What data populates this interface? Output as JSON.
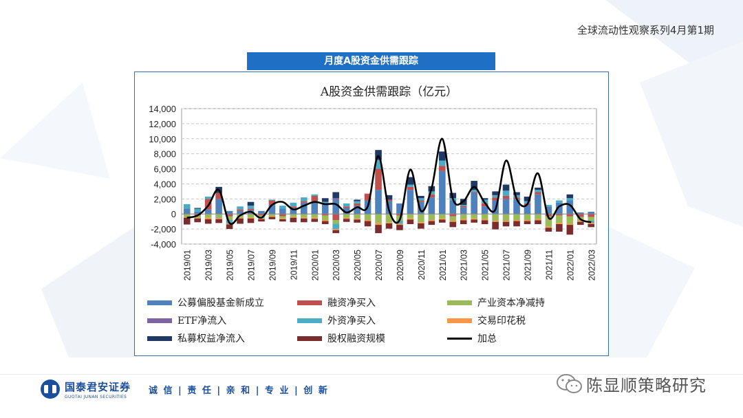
{
  "header": {
    "report_series": "全球流动性观察系列4月第1期"
  },
  "banner": {
    "title": "月度A股资金供需跟踪"
  },
  "footer": {
    "brand_name": "国泰君安证券",
    "brand_en": "GUOTAI JUNAN SECURITIES",
    "motto": "诚 信 | 责 任 | 亲 和 | 专 业 | 创 新",
    "wechat_name": "陈显顺策略研究"
  },
  "chart_data": {
    "type": "bar",
    "title": "A股资金供需跟踪（亿元）",
    "stacked": true,
    "ylim": [
      -4000,
      14000
    ],
    "yticks": [
      -4000,
      -2000,
      0,
      2000,
      4000,
      6000,
      8000,
      10000,
      12000,
      14000
    ],
    "ytick_labels": [
      "-4,000",
      "-2,000",
      "0",
      "2,000",
      "4,000",
      "6,000",
      "8,000",
      "10,000",
      "12,000",
      "14,000"
    ],
    "grid": true,
    "legend_position": "bottom",
    "categories": [
      "2019/01",
      "2019/02",
      "2019/03",
      "2019/04",
      "2019/05",
      "2019/06",
      "2019/07",
      "2019/08",
      "2019/09",
      "2019/10",
      "2019/11",
      "2019/12",
      "2020/01",
      "2020/02",
      "2020/03",
      "2020/04",
      "2020/05",
      "2020/06",
      "2020/07",
      "2020/08",
      "2020/09",
      "2020/10",
      "2020/11",
      "2020/12",
      "2021/01",
      "2021/02",
      "2021/03",
      "2021/04",
      "2021/05",
      "2021/06",
      "2021/07",
      "2021/08",
      "2021/09",
      "2021/10",
      "2021/11",
      "2021/12",
      "2022/01",
      "2022/02",
      "2022/03"
    ],
    "tick_labels": [
      "2019/01",
      "2019/03",
      "2019/05",
      "2019/07",
      "2019/09",
      "2019/11",
      "2020/01",
      "2020/03",
      "2020/05",
      "2020/07",
      "2020/09",
      "2020/11",
      "2021/01",
      "2021/03",
      "2021/05",
      "2021/07",
      "2021/09",
      "2021/11",
      "2022/01",
      "2022/03"
    ],
    "series": [
      {
        "name": "公募偏股基金新成立",
        "color": "#4f81bd",
        "values": [
          700,
          300,
          600,
          2000,
          400,
          400,
          500,
          400,
          1200,
          700,
          800,
          1500,
          1700,
          1500,
          1900,
          800,
          1100,
          1800,
          3200,
          1700,
          1400,
          3200,
          1600,
          2200,
          5700,
          1800,
          900,
          2800,
          1000,
          1800,
          2000,
          2000,
          1200,
          2600,
          1000,
          1500,
          1800,
          200,
          300
        ]
      },
      {
        "name": "融资净买入",
        "color": "#c0504d",
        "values": [
          0,
          -200,
          1400,
          800,
          -300,
          200,
          200,
          -200,
          600,
          -300,
          200,
          200,
          700,
          -200,
          -800,
          200,
          300,
          900,
          2800,
          200,
          -200,
          400,
          200,
          400,
          700,
          -300,
          200,
          100,
          400,
          400,
          400,
          200,
          200,
          300,
          -300,
          -200,
          -300,
          -400,
          -400
        ]
      },
      {
        "name": "产业资本净减持",
        "color": "#9bbb59",
        "values": [
          -400,
          -300,
          -500,
          -400,
          -500,
          -500,
          -500,
          -300,
          -300,
          -300,
          -400,
          -500,
          -500,
          -600,
          -500,
          -500,
          -600,
          -800,
          -1200,
          -1100,
          -700,
          -600,
          -1100,
          -800,
          -600,
          -600,
          -700,
          -600,
          -700,
          -900,
          -900,
          -800,
          -800,
          -700,
          -1400,
          -1000,
          -1000,
          -500,
          -500
        ]
      },
      {
        "name": "ETF净流入",
        "color": "#8064a2",
        "values": [
          0,
          0,
          0,
          0,
          0,
          0,
          0,
          0,
          0,
          0,
          0,
          0,
          0,
          0,
          200,
          0,
          0,
          0,
          0,
          0,
          0,
          0,
          0,
          0,
          0,
          0,
          0,
          0,
          0,
          0,
          0,
          0,
          0,
          0,
          0,
          0,
          0,
          0,
          0
        ]
      },
      {
        "name": "外资净买入",
        "color": "#4bacc6",
        "values": [
          600,
          400,
          300,
          -100,
          -500,
          400,
          400,
          -100,
          100,
          400,
          500,
          500,
          200,
          100,
          -700,
          400,
          300,
          0,
          1200,
          0,
          -400,
          300,
          300,
          400,
          700,
          300,
          100,
          300,
          500,
          300,
          700,
          300,
          300,
          300,
          200,
          300,
          300,
          0,
          -300
        ]
      },
      {
        "name": "交易印花税",
        "color": "#f79646",
        "values": [
          -100,
          -100,
          -200,
          -200,
          -100,
          -100,
          -100,
          -100,
          -100,
          -100,
          -100,
          -100,
          -150,
          -150,
          -150,
          -150,
          -150,
          -150,
          -250,
          -150,
          -150,
          -150,
          -150,
          -150,
          -150,
          -150,
          -150,
          -150,
          -150,
          -150,
          -150,
          -150,
          -150,
          -150,
          -150,
          -150,
          -150,
          -150,
          -150
        ]
      },
      {
        "name": "私募权益净流入",
        "color": "#1f3864",
        "values": [
          0,
          100,
          0,
          800,
          0,
          0,
          500,
          0,
          0,
          0,
          0,
          0,
          0,
          500,
          800,
          0,
          200,
          0,
          1300,
          600,
          0,
          1000,
          300,
          700,
          1200,
          700,
          800,
          1200,
          200,
          500,
          800,
          400,
          600,
          300,
          0,
          0,
          500,
          0,
          0
        ]
      },
      {
        "name": "股权融资规模",
        "color": "#7b2c2c",
        "values": [
          -900,
          -500,
          -600,
          -500,
          -600,
          -700,
          -600,
          -300,
          -300,
          -300,
          -600,
          -500,
          -400,
          -400,
          -400,
          -400,
          -400,
          -700,
          -1100,
          -700,
          -700,
          -600,
          -700,
          -500,
          -400,
          -700,
          -500,
          -400,
          -500,
          -1000,
          -600,
          -700,
          -400,
          -500,
          -500,
          -1000,
          -1300,
          -400,
          -400
        ]
      }
    ],
    "total": {
      "name": "加总",
      "color": "#000000",
      "values": [
        -500,
        -200,
        1100,
        3200,
        -1200,
        -200,
        300,
        -500,
        1200,
        1600,
        600,
        1100,
        1600,
        1300,
        1300,
        200,
        900,
        1000,
        7700,
        500,
        -800,
        5900,
        400,
        3400,
        10000,
        2000,
        1700,
        3600,
        1500,
        600,
        7100,
        2000,
        1300,
        5400,
        -500,
        1000,
        1200,
        -700,
        -1100
      ]
    }
  }
}
